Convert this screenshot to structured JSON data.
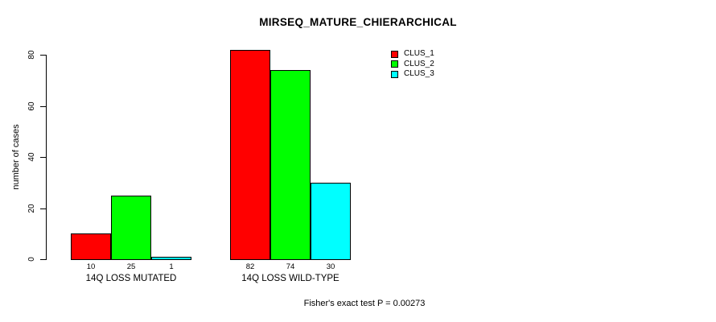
{
  "title": "MIRSEQ_MATURE_CHIERARCHICAL",
  "footnote": "Fisher's exact test P = 0.00273",
  "chart_data": {
    "type": "bar",
    "title": "MIRSEQ_MATURE_CHIERARCHICAL",
    "ylabel": "number of cases",
    "xlabel": "",
    "ylim": [
      0,
      80
    ],
    "yticks": [
      0,
      20,
      40,
      60,
      80
    ],
    "grid": false,
    "legend_position": "top-right",
    "bar_value_labels": true,
    "categories": [
      "14Q LOSS MUTATED",
      "14Q LOSS WILD-TYPE"
    ],
    "series": [
      {
        "name": "CLUS_1",
        "color": "#FF0000",
        "values": [
          10,
          82
        ]
      },
      {
        "name": "CLUS_2",
        "color": "#00FF00",
        "values": [
          25,
          74
        ]
      },
      {
        "name": "CLUS_3",
        "color": "#00FFFF",
        "values": [
          1,
          30
        ]
      }
    ],
    "annotation": "Fisher's exact test P = 0.00273",
    "colors": {
      "background": "#FFFFFF",
      "axis": "#000000",
      "bar_border": "#000000"
    }
  }
}
